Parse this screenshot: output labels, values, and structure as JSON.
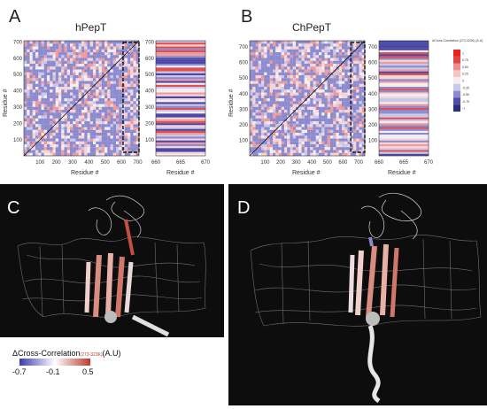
{
  "panels": {
    "A": {
      "letter": "A",
      "title": "hPepT",
      "ylabel": "Residue #",
      "xlabel": "Residue #",
      "strip_xlabel": "Residue #"
    },
    "B": {
      "letter": "B",
      "title": "ChPepT",
      "ylabel": "Residue #",
      "xlabel": "Residue #",
      "strip_xlabel": "Residue #"
    },
    "C": {
      "letter": "C"
    },
    "D": {
      "letter": "D"
    }
  },
  "colorbar_bottom": {
    "title_main": "ΔCross-Correlation",
    "title_sub": "(273-323K)",
    "title_unit": "(A.U)",
    "ticks": [
      "-0.7",
      "-0.1",
      "0.5"
    ],
    "colors": [
      "#3b3cae",
      "#ffffff",
      "#c0392b"
    ]
  },
  "colorbar_small": {
    "title": "ΔCross-Correlation (273-323K) (A.U)",
    "labels": [
      "-1",
      "-0.75",
      "-0.50",
      "-0.25",
      "0",
      "0.25",
      "0.50",
      "0.75",
      "1"
    ],
    "colors": [
      "#2e2d7a",
      "#4f4ea8",
      "#8b8bd0",
      "#c9c9ea",
      "#f5eef0",
      "#f4c6c6",
      "#eb8e8e",
      "#e04646",
      "#e8231f"
    ]
  },
  "chart_data": [
    {
      "type": "heatmap",
      "title": "hPepT",
      "xlabel": "Residue #",
      "ylabel": "Residue #",
      "xlim": [
        1,
        708
      ],
      "ylim": [
        1,
        708
      ],
      "x_ticks": [
        "100",
        "200",
        "300",
        "400",
        "500",
        "600",
        "700"
      ],
      "y_ticks": [
        "100",
        "200",
        "300",
        "400",
        "500",
        "600",
        "700"
      ],
      "highlight_region": [
        610,
        708
      ]
    },
    {
      "type": "heatmap",
      "xlabel": "Residue #",
      "ylabel": "",
      "xlim": [
        660,
        670
      ],
      "ylim": [
        1,
        708
      ],
      "x_ticks": [
        "660",
        "665",
        "670"
      ],
      "y_ticks": [
        "100",
        "200",
        "300",
        "400",
        "500",
        "600",
        "700"
      ]
    },
    {
      "type": "heatmap",
      "title": "ChPepT",
      "xlabel": "Residue #",
      "ylabel": "Residue #",
      "xlim": [
        1,
        740
      ],
      "ylim": [
        1,
        740
      ],
      "x_ticks": [
        "100",
        "200",
        "300",
        "400",
        "500",
        "600",
        "700"
      ],
      "y_ticks": [
        "100",
        "200",
        "300",
        "400",
        "500",
        "600",
        "700"
      ],
      "highlight_region": [
        650,
        740
      ]
    },
    {
      "type": "heatmap",
      "xlabel": "Residue #",
      "ylabel": "",
      "xlim": [
        660,
        670
      ],
      "ylim": [
        1,
        740
      ],
      "x_ticks": [
        "660",
        "665",
        "670"
      ],
      "y_ticks": [
        "100",
        "200",
        "300",
        "400",
        "500",
        "600",
        "700"
      ]
    }
  ]
}
